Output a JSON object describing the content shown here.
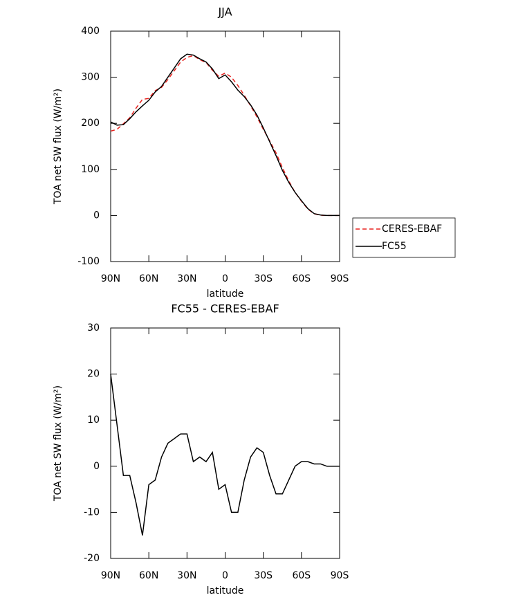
{
  "chart_data": [
    {
      "type": "line",
      "title": "JJA",
      "xlabel": "latitude",
      "ylabel": "TOA net SW flux (W/m²)",
      "x": [
        90,
        85,
        80,
        75,
        70,
        65,
        60,
        55,
        50,
        45,
        40,
        35,
        30,
        25,
        20,
        15,
        10,
        5,
        0,
        -5,
        -10,
        -15,
        -20,
        -25,
        -30,
        -35,
        -40,
        -45,
        -50,
        -55,
        -60,
        -65,
        -70,
        -75,
        -80,
        -85,
        -90
      ],
      "series": [
        {
          "name": "CERES-EBAF",
          "color": "#e8221e",
          "dash": true,
          "values": [
            183,
            187,
            199,
            212,
            233,
            252,
            254,
            271,
            278,
            295,
            314,
            333,
            343,
            347,
            338,
            332,
            315,
            302,
            309,
            300,
            282,
            261,
            238,
            214,
            187,
            162,
            136,
            104,
            75,
            50,
            31,
            14,
            3.5,
            0.5,
            0,
            0,
            0
          ]
        },
        {
          "name": "FC55",
          "color": "#000000",
          "dash": false,
          "values": [
            203,
            196,
            197,
            210,
            225,
            238,
            250,
            268,
            280,
            300,
            320,
            340,
            350,
            348,
            340,
            333,
            318,
            297,
            305,
            290,
            272,
            258,
            240,
            218,
            190,
            160,
            130,
            98,
            72,
            50,
            32,
            15,
            4,
            1,
            0,
            0,
            0
          ]
        }
      ],
      "xlim": [
        90,
        -90
      ],
      "xticks": [
        {
          "value": 90,
          "label": "90N"
        },
        {
          "value": 60,
          "label": "60N"
        },
        {
          "value": 30,
          "label": "30N"
        },
        0,
        {
          "value": -30,
          "label": "30S"
        },
        {
          "value": -60,
          "label": "60S"
        },
        {
          "value": -90,
          "label": "90S"
        }
      ],
      "ylim": [
        -100,
        400
      ],
      "yticks": [
        -100,
        0,
        100,
        200,
        300,
        400
      ],
      "legend": "right"
    },
    {
      "type": "line",
      "title": "FC55 - CERES-EBAF",
      "xlabel": "latitude",
      "ylabel": "TOA net SW flux (W/m²)",
      "x": [
        90,
        85,
        80,
        75,
        70,
        65,
        60,
        55,
        50,
        45,
        40,
        35,
        30,
        25,
        20,
        15,
        10,
        5,
        0,
        -5,
        -10,
        -15,
        -20,
        -25,
        -30,
        -35,
        -40,
        -45,
        -50,
        -55,
        -60,
        -65,
        -70,
        -75,
        -80,
        -85,
        -90
      ],
      "color": "#000000",
      "values": [
        20,
        9,
        -2,
        -2,
        -8,
        -15,
        -4,
        -3,
        2,
        5,
        6,
        7,
        7,
        1,
        2,
        1,
        3,
        -5,
        -4,
        -10,
        -10,
        -3,
        2,
        4,
        3,
        -2,
        -6,
        -6,
        -3,
        0,
        1,
        1,
        0.5,
        0.5,
        0,
        0,
        0
      ],
      "xlim": [
        90,
        -90
      ],
      "xticks": [
        {
          "value": 90,
          "label": "90N"
        },
        {
          "value": 60,
          "label": "60N"
        },
        {
          "value": 30,
          "label": "30N"
        },
        0,
        {
          "value": -30,
          "label": "30S"
        },
        {
          "value": -60,
          "label": "60S"
        },
        {
          "value": -90,
          "label": "90S"
        }
      ],
      "ylim": [
        -20,
        30
      ],
      "yticks": [
        -20,
        -10,
        0,
        10,
        20,
        30
      ]
    }
  ]
}
